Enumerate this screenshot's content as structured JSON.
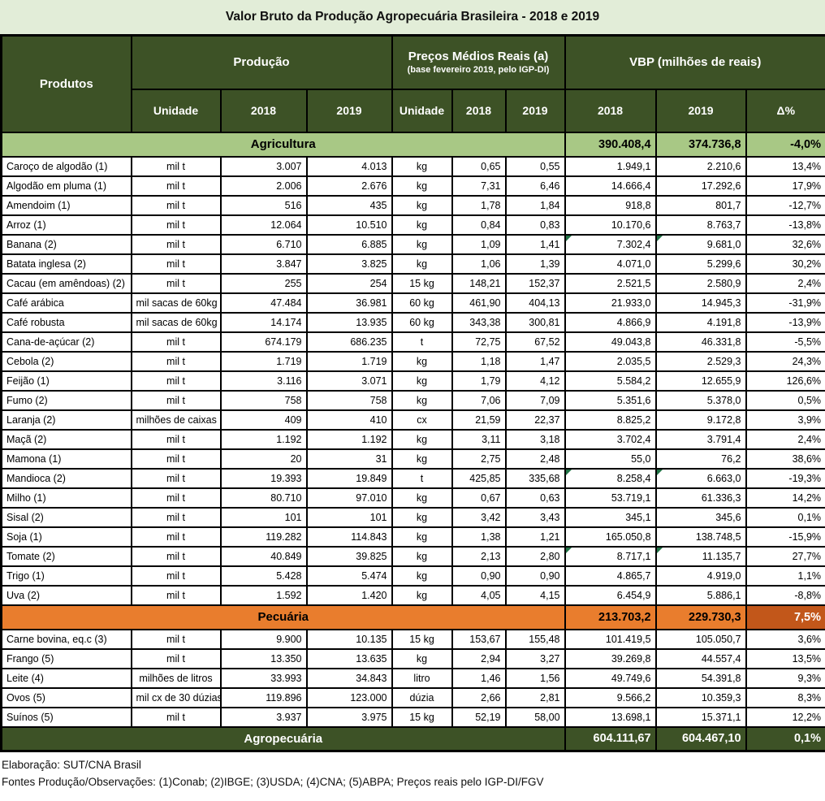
{
  "colors": {
    "header_green": "#3d5226",
    "title_band_green": "#e2edd8",
    "agriculture_band_green": "#a8c885",
    "livestock_band_orange": "#e97d2d",
    "livestock_delta_dark_orange": "#c2571a",
    "flag_triangle_green": "#217346",
    "border_black": "#000000"
  },
  "footer": {
    "line1": "Elaboração: SUT/CNA Brasil",
    "line2": "Fontes Produção/Observações: (1)Conab; (2)IBGE; (3)USDA; (4)CNA; (5)ABPA; Preços reais pelo IGP-DI/FGV"
  },
  "chart_data": {
    "type": "table",
    "title": "Valor Bruto da Produção Agropecuária Brasileira - 2018 e 2019",
    "header": {
      "produtos": "Produtos",
      "producao": "Produção",
      "precos_line1": "Preços Médios Reais (a)",
      "precos_line2": "(base fevereiro 2019, pelo IGP-DI)",
      "vbp": "VBP (milhões de reais)",
      "unidade": "Unidade",
      "y2018": "2018",
      "y2019": "2019",
      "delta": "Δ%"
    },
    "sections": [
      {
        "name": "Agricultura",
        "slug": "agricultura",
        "vbp_2018": "390.408,4",
        "vbp_2019": "374.736,8",
        "delta": "-4,0%",
        "rows": [
          {
            "produto": "Caroço de algodão (1)",
            "unidade": "mil t",
            "prod_2018": "3.007",
            "prod_2019": "4.013",
            "preco_unidade": "kg",
            "preco_2018": "0,65",
            "preco_2019": "0,55",
            "vbp_2018": "1.949,1",
            "vbp_2019": "2.210,6",
            "delta": "13,4%",
            "flag": false
          },
          {
            "produto": "Algodão em pluma (1)",
            "unidade": "mil t",
            "prod_2018": "2.006",
            "prod_2019": "2.676",
            "preco_unidade": "kg",
            "preco_2018": "7,31",
            "preco_2019": "6,46",
            "vbp_2018": "14.666,4",
            "vbp_2019": "17.292,6",
            "delta": "17,9%",
            "flag": false
          },
          {
            "produto": "Amendoim (1)",
            "unidade": "mil t",
            "prod_2018": "516",
            "prod_2019": "435",
            "preco_unidade": "kg",
            "preco_2018": "1,78",
            "preco_2019": "1,84",
            "vbp_2018": "918,8",
            "vbp_2019": "801,7",
            "delta": "-12,7%",
            "flag": false
          },
          {
            "produto": "Arroz (1)",
            "unidade": "mil t",
            "prod_2018": "12.064",
            "prod_2019": "10.510",
            "preco_unidade": "kg",
            "preco_2018": "0,84",
            "preco_2019": "0,83",
            "vbp_2018": "10.170,6",
            "vbp_2019": "8.763,7",
            "delta": "-13,8%",
            "flag": false
          },
          {
            "produto": "Banana (2)",
            "unidade": "mil t",
            "prod_2018": "6.710",
            "prod_2019": "6.885",
            "preco_unidade": "kg",
            "preco_2018": "1,09",
            "preco_2019": "1,41",
            "vbp_2018": "7.302,4",
            "vbp_2019": "9.681,0",
            "delta": "32,6%",
            "flag": true
          },
          {
            "produto": "Batata inglesa (2)",
            "unidade": "mil t",
            "prod_2018": "3.847",
            "prod_2019": "3.825",
            "preco_unidade": "kg",
            "preco_2018": "1,06",
            "preco_2019": "1,39",
            "vbp_2018": "4.071,0",
            "vbp_2019": "5.299,6",
            "delta": "30,2%",
            "flag": false
          },
          {
            "produto": "Cacau (em amêndoas) (2)",
            "unidade": "mil t",
            "prod_2018": "255",
            "prod_2019": "254",
            "preco_unidade": "15 kg",
            "preco_2018": "148,21",
            "preco_2019": "152,37",
            "vbp_2018": "2.521,5",
            "vbp_2019": "2.580,9",
            "delta": "2,4%",
            "flag": false
          },
          {
            "produto": "Café arábica",
            "unidade": "mil sacas de 60kg",
            "prod_2018": "47.484",
            "prod_2019": "36.981",
            "preco_unidade": "60 kg",
            "preco_2018": "461,90",
            "preco_2019": "404,13",
            "vbp_2018": "21.933,0",
            "vbp_2019": "14.945,3",
            "delta": "-31,9%",
            "flag": false
          },
          {
            "produto": "Café robusta",
            "unidade": "mil sacas de 60kg",
            "prod_2018": "14.174",
            "prod_2019": "13.935",
            "preco_unidade": "60 kg",
            "preco_2018": "343,38",
            "preco_2019": "300,81",
            "vbp_2018": "4.866,9",
            "vbp_2019": "4.191,8",
            "delta": "-13,9%",
            "flag": false
          },
          {
            "produto": "Cana-de-açúcar (2)",
            "unidade": "mil t",
            "prod_2018": "674.179",
            "prod_2019": "686.235",
            "preco_unidade": "t",
            "preco_2018": "72,75",
            "preco_2019": "67,52",
            "vbp_2018": "49.043,8",
            "vbp_2019": "46.331,8",
            "delta": "-5,5%",
            "flag": false
          },
          {
            "produto": "Cebola (2)",
            "unidade": "mil t",
            "prod_2018": "1.719",
            "prod_2019": "1.719",
            "preco_unidade": "kg",
            "preco_2018": "1,18",
            "preco_2019": "1,47",
            "vbp_2018": "2.035,5",
            "vbp_2019": "2.529,3",
            "delta": "24,3%",
            "flag": false
          },
          {
            "produto": "Feijão (1)",
            "unidade": "mil t",
            "prod_2018": "3.116",
            "prod_2019": "3.071",
            "preco_unidade": "kg",
            "preco_2018": "1,79",
            "preco_2019": "4,12",
            "vbp_2018": "5.584,2",
            "vbp_2019": "12.655,9",
            "delta": "126,6%",
            "flag": false
          },
          {
            "produto": "Fumo (2)",
            "unidade": "mil t",
            "prod_2018": "758",
            "prod_2019": "758",
            "preco_unidade": "kg",
            "preco_2018": "7,06",
            "preco_2019": "7,09",
            "vbp_2018": "5.351,6",
            "vbp_2019": "5.378,0",
            "delta": "0,5%",
            "flag": false
          },
          {
            "produto": "Laranja (2)",
            "unidade": "milhões de caixas",
            "prod_2018": "409",
            "prod_2019": "410",
            "preco_unidade": "cx",
            "preco_2018": "21,59",
            "preco_2019": "22,37",
            "vbp_2018": "8.825,2",
            "vbp_2019": "9.172,8",
            "delta": "3,9%",
            "flag": false
          },
          {
            "produto": "Maçã (2)",
            "unidade": "mil t",
            "prod_2018": "1.192",
            "prod_2019": "1.192",
            "preco_unidade": "kg",
            "preco_2018": "3,11",
            "preco_2019": "3,18",
            "vbp_2018": "3.702,4",
            "vbp_2019": "3.791,4",
            "delta": "2,4%",
            "flag": false
          },
          {
            "produto": "Mamona (1)",
            "unidade": "mil t",
            "prod_2018": "20",
            "prod_2019": "31",
            "preco_unidade": "kg",
            "preco_2018": "2,75",
            "preco_2019": "2,48",
            "vbp_2018": "55,0",
            "vbp_2019": "76,2",
            "delta": "38,6%",
            "flag": false
          },
          {
            "produto": "Mandioca (2)",
            "unidade": "mil t",
            "prod_2018": "19.393",
            "prod_2019": "19.849",
            "preco_unidade": "t",
            "preco_2018": "425,85",
            "preco_2019": "335,68",
            "vbp_2018": "8.258,4",
            "vbp_2019": "6.663,0",
            "delta": "-19,3%",
            "flag": true
          },
          {
            "produto": "Milho (1)",
            "unidade": "mil t",
            "prod_2018": "80.710",
            "prod_2019": "97.010",
            "preco_unidade": "kg",
            "preco_2018": "0,67",
            "preco_2019": "0,63",
            "vbp_2018": "53.719,1",
            "vbp_2019": "61.336,3",
            "delta": "14,2%",
            "flag": false
          },
          {
            "produto": "Sisal (2)",
            "unidade": "mil t",
            "prod_2018": "101",
            "prod_2019": "101",
            "preco_unidade": "kg",
            "preco_2018": "3,42",
            "preco_2019": "3,43",
            "vbp_2018": "345,1",
            "vbp_2019": "345,6",
            "delta": "0,1%",
            "flag": false
          },
          {
            "produto": "Soja (1)",
            "unidade": "mil t",
            "prod_2018": "119.282",
            "prod_2019": "114.843",
            "preco_unidade": "kg",
            "preco_2018": "1,38",
            "preco_2019": "1,21",
            "vbp_2018": "165.050,8",
            "vbp_2019": "138.748,5",
            "delta": "-15,9%",
            "flag": false
          },
          {
            "produto": "Tomate (2)",
            "unidade": "mil t",
            "prod_2018": "40.849",
            "prod_2019": "39.825",
            "preco_unidade": "kg",
            "preco_2018": "2,13",
            "preco_2019": "2,80",
            "vbp_2018": "8.717,1",
            "vbp_2019": "11.135,7",
            "delta": "27,7%",
            "flag": true
          },
          {
            "produto": "Trigo (1)",
            "unidade": "mil t",
            "prod_2018": "5.428",
            "prod_2019": "5.474",
            "preco_unidade": "kg",
            "preco_2018": "0,90",
            "preco_2019": "0,90",
            "vbp_2018": "4.865,7",
            "vbp_2019": "4.919,0",
            "delta": "1,1%",
            "flag": false
          },
          {
            "produto": "Uva (2)",
            "unidade": "mil t",
            "prod_2018": "1.592",
            "prod_2019": "1.420",
            "preco_unidade": "kg",
            "preco_2018": "4,05",
            "preco_2019": "4,15",
            "vbp_2018": "6.454,9",
            "vbp_2019": "5.886,1",
            "delta": "-8,8%",
            "flag": false
          }
        ]
      },
      {
        "name": "Pecuária",
        "slug": "pecuaria",
        "vbp_2018": "213.703,2",
        "vbp_2019": "229.730,3",
        "delta": "7,5%",
        "rows": [
          {
            "produto": "Carne bovina, eq.c (3)",
            "unidade": "mil t",
            "prod_2018": "9.900",
            "prod_2019": "10.135",
            "preco_unidade": "15 kg",
            "preco_2018": "153,67",
            "preco_2019": "155,48",
            "vbp_2018": "101.419,5",
            "vbp_2019": "105.050,7",
            "delta": "3,6%",
            "flag": false
          },
          {
            "produto": "Frango (5)",
            "unidade": "mil t",
            "prod_2018": "13.350",
            "prod_2019": "13.635",
            "preco_unidade": "kg",
            "preco_2018": "2,94",
            "preco_2019": "3,27",
            "vbp_2018": "39.269,8",
            "vbp_2019": "44.557,4",
            "delta": "13,5%",
            "flag": false
          },
          {
            "produto": "Leite (4)",
            "unidade": "milhões de litros",
            "prod_2018": "33.993",
            "prod_2019": "34.843",
            "preco_unidade": "litro",
            "preco_2018": "1,46",
            "preco_2019": "1,56",
            "vbp_2018": "49.749,6",
            "vbp_2019": "54.391,8",
            "delta": "9,3%",
            "flag": false
          },
          {
            "produto": "Ovos (5)",
            "unidade": "mil cx de 30 dúzias",
            "prod_2018": "119.896",
            "prod_2019": "123.000",
            "preco_unidade": "dúzia",
            "preco_2018": "2,66",
            "preco_2019": "2,81",
            "vbp_2018": "9.566,2",
            "vbp_2019": "10.359,3",
            "delta": "8,3%",
            "flag": false
          },
          {
            "produto": "Suínos (5)",
            "unidade": "mil t",
            "prod_2018": "3.937",
            "prod_2019": "3.975",
            "preco_unidade": "15 kg",
            "preco_2018": "52,19",
            "preco_2019": "58,00",
            "vbp_2018": "13.698,1",
            "vbp_2019": "15.371,1",
            "delta": "12,2%",
            "flag": false
          }
        ]
      }
    ],
    "total": {
      "name": "Agropecuária",
      "slug": "total",
      "vbp_2018": "604.111,67",
      "vbp_2019": "604.467,10",
      "delta": "0,1%"
    }
  }
}
